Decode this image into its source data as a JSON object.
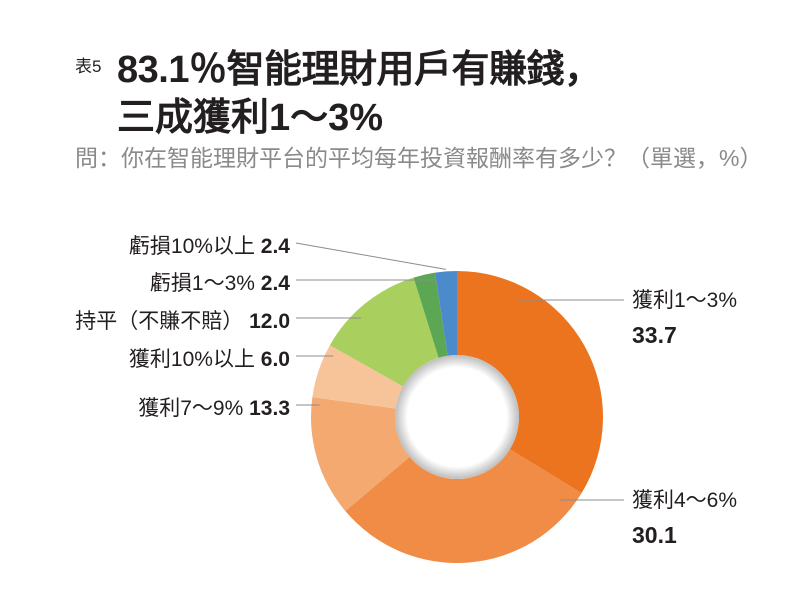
{
  "header": {
    "tag": "表5",
    "title_line1": "83.1％智能理財用戶有賺錢，",
    "title_line2": "三成獲利1～3%",
    "subtitle": "問：你在智能理財平台的平均每年投資報酬率有多少？（單選，%）"
  },
  "chart_data": {
    "type": "pie",
    "donut": true,
    "start": "top, clockwise",
    "slices": [
      {
        "label": "獲利1～3%",
        "value": 33.7,
        "color": "#ec741f"
      },
      {
        "label": "獲利4～6%",
        "value": 30.1,
        "color": "#f08c45"
      },
      {
        "label": "獲利7～9%",
        "value": 13.3,
        "color": "#f3a96f"
      },
      {
        "label": "獲利10%以上",
        "value": 6.0,
        "color": "#f7c49a"
      },
      {
        "label": "持平（不賺不賠）",
        "value": 12.0,
        "color": "#a9cf5e"
      },
      {
        "label": "虧損1～3%",
        "value": 2.4,
        "color": "#5ba753"
      },
      {
        "label": "虧損10%以上",
        "value": 2.4,
        "color": "#4b8bcb"
      }
    ]
  }
}
